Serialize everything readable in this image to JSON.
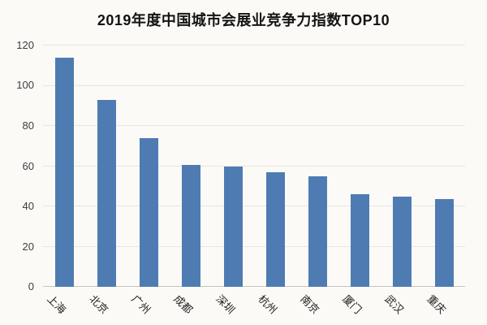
{
  "title": "2019年度中国城市会展业竞争力指数TOP10",
  "chart_data": {
    "type": "bar",
    "title": "2019年度中国城市会展业竞争力指数TOP10",
    "categories": [
      "上海",
      "北京",
      "广州",
      "成都",
      "深圳",
      "杭州",
      "南京",
      "厦门",
      "武汉",
      "重庆"
    ],
    "values": [
      114,
      93,
      74,
      60.5,
      60,
      57,
      55,
      46,
      45,
      43.5
    ],
    "xlabel": "",
    "ylabel": "",
    "ylim": [
      0,
      120
    ],
    "yticks": [
      0,
      20,
      40,
      60,
      80,
      100,
      120
    ],
    "grid": true,
    "legend": "none",
    "bar_color": "#4e7cb2",
    "background_color": "#fbfaf7",
    "gridline_color": "#e9e6e1"
  }
}
